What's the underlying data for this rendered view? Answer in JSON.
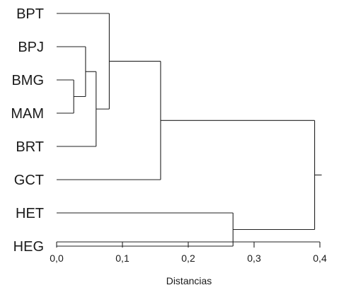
{
  "leaves": [
    "BPT",
    "BPJ",
    "BMG",
    "MAM",
    "BRT",
    "GCT",
    "HET",
    "HEG"
  ],
  "merges": [
    {
      "left": "BMG",
      "right": "MAM",
      "distance": 0.026
    },
    {
      "left": "BPJ",
      "right": "C1",
      "distance": 0.044
    },
    {
      "left": "C2",
      "right": "BRT",
      "distance": 0.06
    },
    {
      "left": "BPT",
      "right": "C3",
      "distance": 0.08
    },
    {
      "left": "C4",
      "right": "GCT",
      "distance": 0.158
    },
    {
      "left": "HET",
      "right": "HEG",
      "distance": 0.268
    },
    {
      "left": "C5",
      "right": "C6",
      "distance": 0.392
    }
  ],
  "axis": {
    "label": "Distancias",
    "ticks": [
      "0,0",
      "0,1",
      "0,2",
      "0,3",
      "0,4"
    ],
    "tick_values": [
      0,
      0.1,
      0.2,
      0.3,
      0.4
    ],
    "range": [
      0,
      0.4
    ]
  },
  "colors": {
    "line": "#222222",
    "text": "#1a1a1a"
  }
}
